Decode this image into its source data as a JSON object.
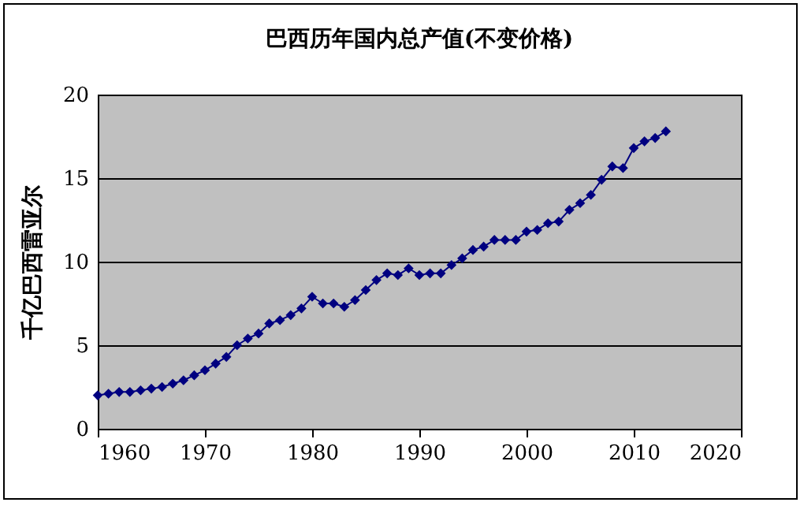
{
  "chart_data": {
    "type": "line",
    "title": "巴西历年国内总产值(不变价格)",
    "ylabel": "千亿巴西雷亚尔",
    "x": [
      1960,
      1961,
      1962,
      1963,
      1964,
      1965,
      1966,
      1967,
      1968,
      1969,
      1970,
      1971,
      1972,
      1973,
      1974,
      1975,
      1976,
      1977,
      1978,
      1979,
      1980,
      1981,
      1982,
      1983,
      1984,
      1985,
      1986,
      1987,
      1988,
      1989,
      1990,
      1991,
      1992,
      1993,
      1994,
      1995,
      1996,
      1997,
      1998,
      1999,
      2000,
      2001,
      2002,
      2003,
      2004,
      2005,
      2006,
      2007,
      2008,
      2009,
      2010,
      2011,
      2012,
      2013
    ],
    "series": [
      {
        "color": "#000080",
        "values": [
          2.0,
          2.1,
          2.2,
          2.2,
          2.3,
          2.4,
          2.5,
          2.7,
          2.9,
          3.2,
          3.5,
          3.9,
          4.3,
          5.0,
          5.4,
          5.7,
          6.3,
          6.5,
          6.8,
          7.2,
          7.9,
          7.5,
          7.5,
          7.3,
          7.7,
          8.3,
          8.9,
          9.3,
          9.2,
          9.6,
          9.2,
          9.3,
          9.3,
          9.8,
          10.2,
          10.7,
          10.9,
          11.3,
          11.3,
          11.3,
          11.8,
          11.9,
          12.3,
          12.4,
          13.1,
          13.5,
          14.0,
          14.9,
          15.7,
          15.6,
          16.8,
          17.2,
          17.4,
          17.8
        ]
      }
    ],
    "xlim": [
      1960,
      2020
    ],
    "xticks": [
      1960,
      1970,
      1980,
      1990,
      2000,
      2010,
      2020
    ],
    "ylim": [
      0,
      20
    ],
    "yticks": [
      0,
      5,
      10,
      15,
      20
    ],
    "grid": "y",
    "legend": false,
    "marker": "diamond",
    "line_style": "solid"
  }
}
